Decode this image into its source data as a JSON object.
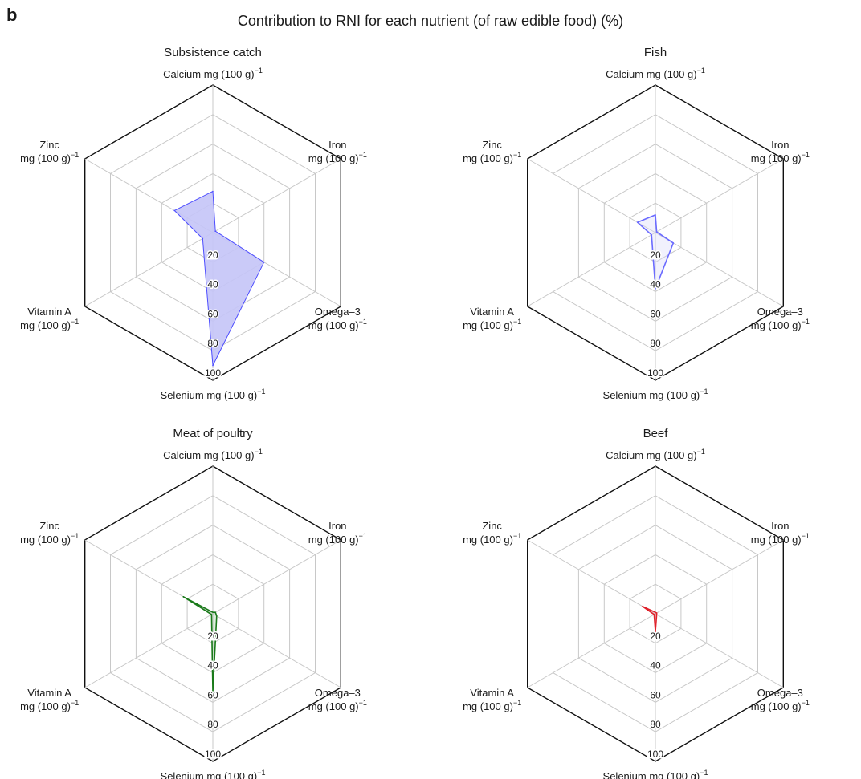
{
  "figure": {
    "panel_letter": "b",
    "title": "Contribution to RNI for each nutrient (of raw edible food) (%)"
  },
  "chart_data": [
    {
      "type": "radar",
      "title": "Subsistence catch",
      "axes": [
        "Calcium mg (100 g)⁻¹",
        "Iron mg (100 g)⁻¹",
        "Omega–3 mg (100 g)⁻¹",
        "Selenium mg (100 g)⁻¹",
        "Vitamin A mg (100 g)⁻¹",
        "Zinc mg (100 g)⁻¹"
      ],
      "radial_ticks": [
        20,
        40,
        60,
        80,
        100
      ],
      "range": [
        0,
        100
      ],
      "grid": true,
      "color": "#4d4dff",
      "fill": "#c4c4f7",
      "filled": true,
      "values": [
        28,
        2,
        40,
        90,
        8,
        30
      ]
    },
    {
      "type": "radar",
      "title": "Fish",
      "axes": [
        "Calcium mg (100 g)⁻¹",
        "Iron mg (100 g)⁻¹",
        "Omega–3 mg (100 g)⁻¹",
        "Selenium mg (100 g)⁻¹",
        "Vitamin A mg (100 g)⁻¹",
        "Zinc mg (100 g)⁻¹"
      ],
      "radial_ticks": [
        20,
        40,
        60,
        80,
        100
      ],
      "range": [
        0,
        100
      ],
      "grid": true,
      "color": "#6b6bff",
      "fill": "#d8d8fa",
      "filled": false,
      "values": [
        12,
        1,
        14,
        38,
        3,
        14
      ]
    },
    {
      "type": "radar",
      "title": "Meat of poultry",
      "axes": [
        "Calcium mg (100 g)⁻¹",
        "Iron mg (100 g)⁻¹",
        "Omega–3 mg (100 g)⁻¹",
        "Selenium mg (100 g)⁻¹",
        "Vitamin A mg (100 g)⁻¹",
        "Zinc mg (100 g)⁻¹"
      ],
      "radial_ticks": [
        20,
        40,
        60,
        80,
        100
      ],
      "range": [
        0,
        100
      ],
      "grid": true,
      "color": "#1a7a1a",
      "fill": "#9ccc9c",
      "filled": false,
      "values": [
        1,
        2,
        3,
        53,
        1,
        23
      ]
    },
    {
      "type": "radar",
      "title": "Beef",
      "axes": [
        "Calcium mg (100 g)⁻¹",
        "Iron mg (100 g)⁻¹",
        "Omega–3 mg (100 g)⁻¹",
        "Selenium mg (100 g)⁻¹",
        "Vitamin A mg (100 g)⁻¹",
        "Zinc mg (100 g)⁻¹"
      ],
      "radial_ticks": [
        20,
        40,
        60,
        80,
        100
      ],
      "range": [
        0,
        100
      ],
      "grid": true,
      "color": "#e0202a",
      "fill": "#f4b0b4",
      "filled": false,
      "values": [
        1,
        1,
        1,
        12,
        1,
        10
      ]
    }
  ]
}
